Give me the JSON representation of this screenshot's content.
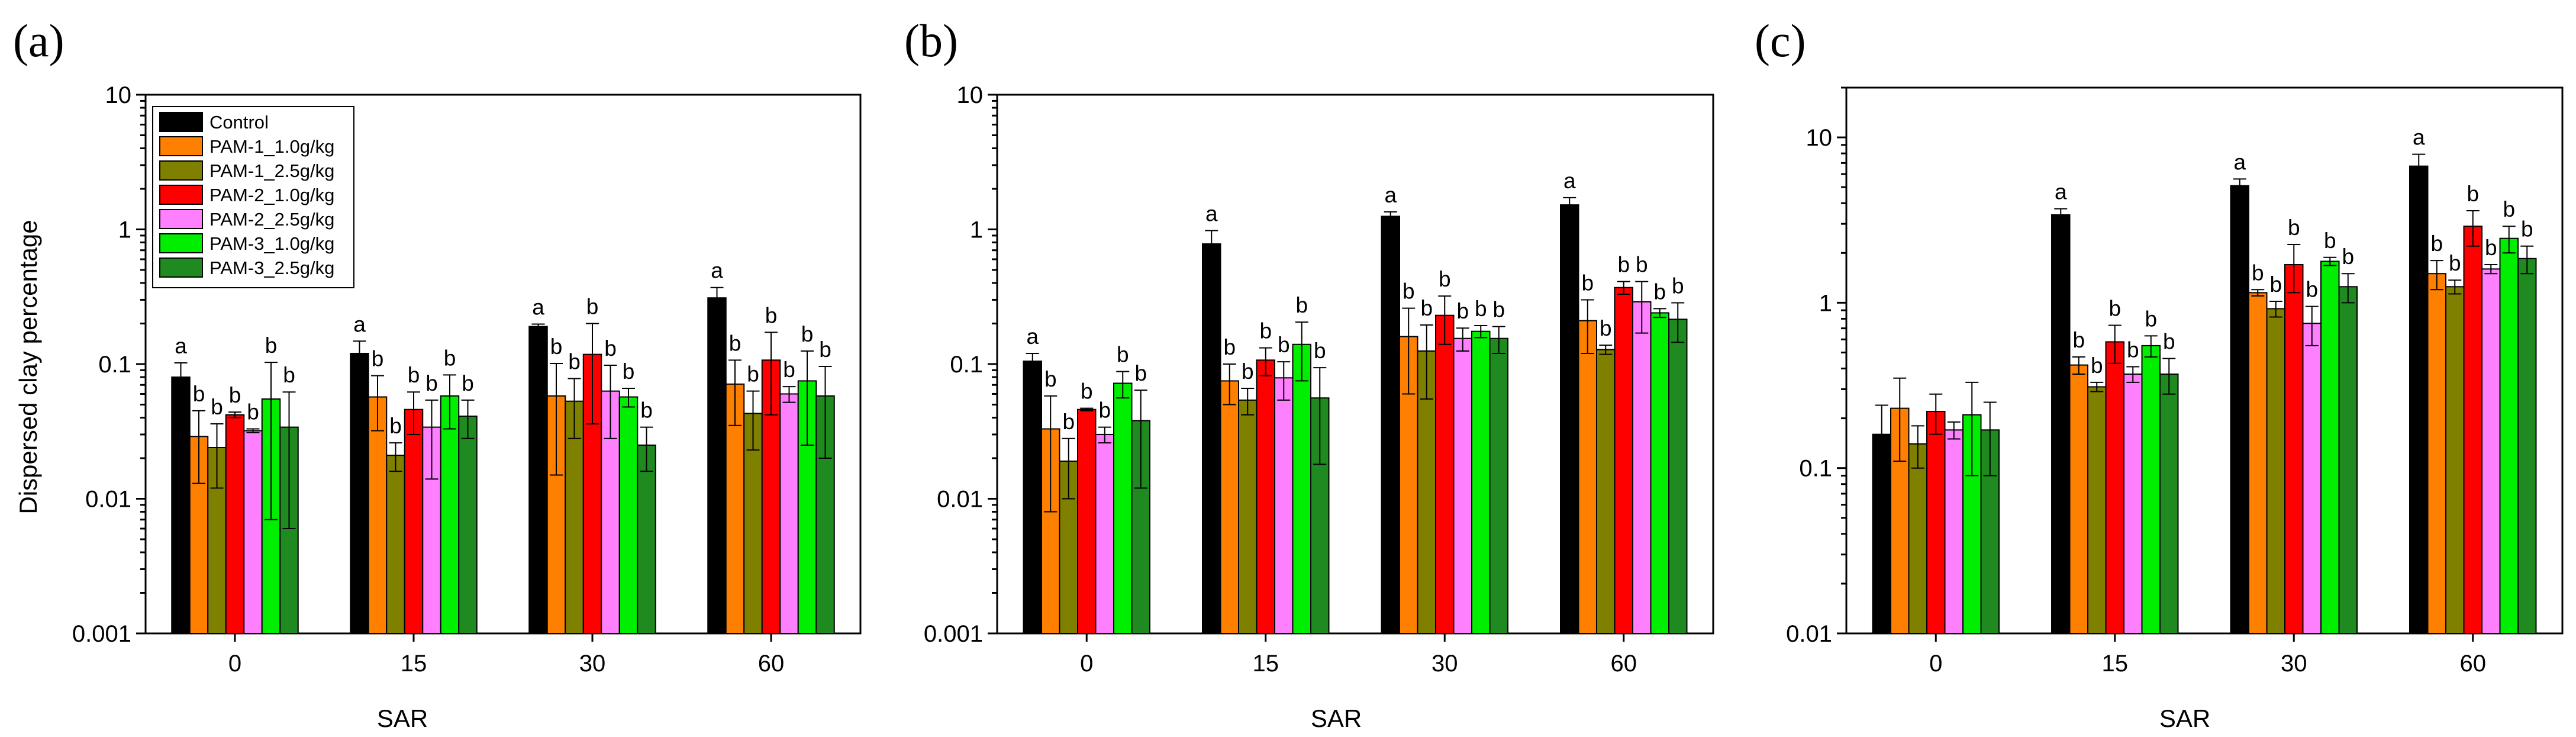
{
  "legend": {
    "series": [
      "Control",
      "PAM-1_1.0g/kg",
      "PAM-1_2.5g/kg",
      "PAM-2_1.0g/kg",
      "PAM-2_2.5g/kg",
      "PAM-3_1.0g/kg",
      "PAM-3_2.5g/kg"
    ],
    "colors": [
      "#000000",
      "#ff7f00",
      "#7f7f00",
      "#ff0000",
      "#ff80ff",
      "#00ee00",
      "#1f8a1f"
    ]
  },
  "chart_data": [
    {
      "type": "bar",
      "panel": "(a)",
      "ylabel": "Dispersed clay percentage",
      "xlabel": "SAR",
      "yscale": "log",
      "ylim": [
        0.001,
        10
      ],
      "yticks": [
        "0.001",
        "0.01",
        "0.1",
        "1",
        "10"
      ],
      "categories": [
        "0",
        "15",
        "30",
        "60"
      ],
      "series": [
        {
          "name": "Control",
          "values": [
            0.08,
            0.12,
            0.19,
            0.31
          ],
          "err": [
            0.022,
            0.028,
            0.008,
            0.06
          ],
          "letters": [
            "a",
            "a",
            "a",
            "a"
          ]
        },
        {
          "name": "PAM-1_1.0g/kg",
          "values": [
            0.029,
            0.057,
            0.058,
            0.071
          ],
          "err": [
            0.016,
            0.025,
            0.043,
            0.036
          ],
          "letters": [
            "b",
            "b",
            "b",
            "b"
          ]
        },
        {
          "name": "PAM-1_2.5g/kg",
          "values": [
            0.024,
            0.021,
            0.053,
            0.043
          ],
          "err": [
            0.012,
            0.005,
            0.025,
            0.02
          ],
          "letters": [
            "b",
            "b",
            "b",
            "b"
          ]
        },
        {
          "name": "PAM-2_1.0g/kg",
          "values": [
            0.042,
            0.046,
            0.118,
            0.107
          ],
          "err": [
            0.002,
            0.016,
            0.082,
            0.065
          ],
          "letters": [
            "b",
            "b",
            "b",
            "b"
          ]
        },
        {
          "name": "PAM-2_2.5g/kg",
          "values": [
            0.032,
            0.034,
            0.063,
            0.06
          ],
          "err": [
            0.001,
            0.02,
            0.035,
            0.008
          ],
          "letters": [
            "b",
            "b",
            "b",
            "b"
          ]
        },
        {
          "name": "PAM-3_1.0g/kg",
          "values": [
            0.055,
            0.058,
            0.057,
            0.075
          ],
          "err": [
            0.048,
            0.025,
            0.009,
            0.05
          ],
          "letters": [
            "b",
            "b",
            "b",
            "b"
          ]
        },
        {
          "name": "PAM-3_2.5g/kg",
          "values": [
            0.034,
            0.041,
            0.025,
            0.058
          ],
          "err": [
            0.028,
            0.013,
            0.009,
            0.038
          ],
          "letters": [
            "b",
            "b",
            "b",
            "b"
          ]
        }
      ]
    },
    {
      "type": "bar",
      "panel": "(b)",
      "ylabel": "",
      "xlabel": "SAR",
      "yscale": "log",
      "ylim": [
        0.001,
        10
      ],
      "yticks": [
        "0.001",
        "0.01",
        "0.1",
        "1",
        "10"
      ],
      "categories": [
        "0",
        "15",
        "30",
        "60"
      ],
      "series": [
        {
          "name": "Control",
          "values": [
            0.105,
            0.78,
            1.25,
            1.52
          ],
          "err": [
            0.015,
            0.2,
            0.1,
            0.2
          ],
          "letters": [
            "a",
            "a",
            "a",
            "a"
          ]
        },
        {
          "name": "PAM-1_1.0g/kg",
          "values": [
            0.033,
            0.075,
            0.16,
            0.21
          ],
          "err": [
            0.025,
            0.025,
            0.1,
            0.09
          ],
          "letters": [
            "b",
            "b",
            "b",
            "b"
          ]
        },
        {
          "name": "PAM-1_2.5g/kg",
          "values": [
            0.019,
            0.054,
            0.125,
            0.128
          ],
          "err": [
            0.009,
            0.012,
            0.07,
            0.01
          ],
          "letters": [
            "b",
            "b",
            "b",
            "b"
          ]
        },
        {
          "name": "PAM-2_1.0g/kg",
          "values": [
            0.046,
            0.107,
            0.23,
            0.37
          ],
          "err": [
            0.001,
            0.025,
            0.09,
            0.04
          ],
          "letters": [
            "b",
            "b",
            "b",
            "b"
          ]
        },
        {
          "name": "PAM-2_2.5g/kg",
          "values": [
            0.03,
            0.079,
            0.155,
            0.29
          ],
          "err": [
            0.004,
            0.025,
            0.03,
            0.12
          ],
          "letters": [
            "b",
            "b",
            "b",
            "b"
          ]
        },
        {
          "name": "PAM-3_1.0g/kg",
          "values": [
            0.072,
            0.14,
            0.175,
            0.24
          ],
          "err": [
            0.016,
            0.065,
            0.018,
            0.018
          ],
          "letters": [
            "b",
            "b",
            "b",
            "b"
          ]
        },
        {
          "name": "PAM-3_2.5g/kg",
          "values": [
            0.038,
            0.056,
            0.155,
            0.215
          ],
          "err": [
            0.026,
            0.038,
            0.035,
            0.07
          ],
          "letters": [
            "b",
            "b",
            "b",
            "b"
          ]
        }
      ]
    },
    {
      "type": "bar",
      "panel": "(c)",
      "ylabel": "",
      "xlabel": "SAR",
      "yscale": "log",
      "ylim": [
        0.01,
        20
      ],
      "yticks": [
        "0.01",
        "0.1",
        "1",
        "10"
      ],
      "categories": [
        "0",
        "15",
        "30",
        "60"
      ],
      "series": [
        {
          "name": "Control",
          "values": [
            0.16,
            3.4,
            5.1,
            6.7
          ],
          "err": [
            0.08,
            0.3,
            0.5,
            1.2
          ],
          "letters": [
            "",
            "a",
            "a",
            "a"
          ]
        },
        {
          "name": "PAM-1_1.0g/kg",
          "values": [
            0.23,
            0.42,
            1.15,
            1.5
          ],
          "err": [
            0.12,
            0.05,
            0.05,
            0.3
          ],
          "letters": [
            "",
            "b",
            "b",
            "b"
          ]
        },
        {
          "name": "PAM-1_2.5g/kg",
          "values": [
            0.14,
            0.31,
            0.92,
            1.25
          ],
          "err": [
            0.04,
            0.02,
            0.1,
            0.12
          ],
          "letters": [
            "",
            "b",
            "b",
            "b"
          ]
        },
        {
          "name": "PAM-2_1.0g/kg",
          "values": [
            0.22,
            0.58,
            1.7,
            2.9
          ],
          "err": [
            0.06,
            0.15,
            0.55,
            0.7
          ],
          "letters": [
            "",
            "b",
            "b",
            "b"
          ]
        },
        {
          "name": "PAM-2_2.5g/kg",
          "values": [
            0.17,
            0.37,
            0.75,
            1.6
          ],
          "err": [
            0.02,
            0.04,
            0.2,
            0.1
          ],
          "letters": [
            "",
            "b",
            "b",
            "b"
          ]
        },
        {
          "name": "PAM-3_1.0g/kg",
          "values": [
            0.21,
            0.55,
            1.78,
            2.45
          ],
          "err": [
            0.12,
            0.08,
            0.1,
            0.45
          ],
          "letters": [
            "",
            "b",
            "b",
            "b"
          ]
        },
        {
          "name": "PAM-3_2.5g/kg",
          "values": [
            0.17,
            0.37,
            1.25,
            1.85
          ],
          "err": [
            0.08,
            0.09,
            0.25,
            0.35
          ],
          "letters": [
            "",
            "b",
            "b",
            "b"
          ]
        }
      ]
    }
  ]
}
